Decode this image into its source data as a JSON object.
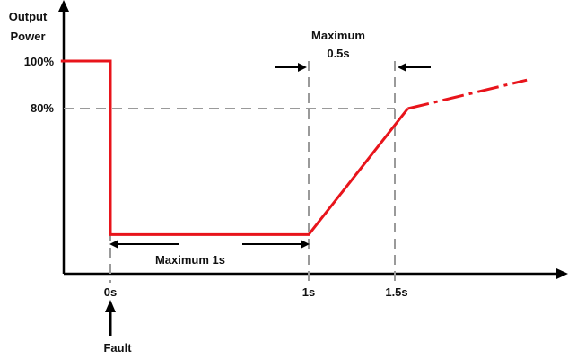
{
  "chart_data": {
    "type": "line",
    "ylabel_lines": [
      "Output",
      "Power"
    ],
    "x_ticks": [
      {
        "x": 0,
        "label": "0s"
      },
      {
        "x": 1,
        "label": "1s"
      },
      {
        "x": 1.5,
        "label": "1.5s"
      }
    ],
    "y_ticks": [
      {
        "y": 100,
        "label": "100%"
      },
      {
        "y": 80,
        "label": "80%"
      }
    ],
    "series": [
      {
        "style": "solid",
        "color": "#e8141b",
        "points": [
          [
            -0.25,
            100
          ],
          [
            0,
            100
          ],
          [
            0,
            27
          ],
          [
            1,
            27
          ],
          [
            1.5,
            80
          ]
        ]
      },
      {
        "style": "dash-dot",
        "color": "#e8141b",
        "points": [
          [
            1.5,
            80
          ],
          [
            2.1,
            92
          ]
        ]
      }
    ],
    "reference_lines": {
      "horizontal_80_color": "#9a9a9a",
      "vertical_at_x": [
        0,
        1,
        1.5
      ]
    },
    "annotations": {
      "max_1s_label": "Maximum 1s",
      "max_05s_lines": [
        "Maximum",
        "0.5s"
      ],
      "fault_label": "Fault"
    }
  }
}
